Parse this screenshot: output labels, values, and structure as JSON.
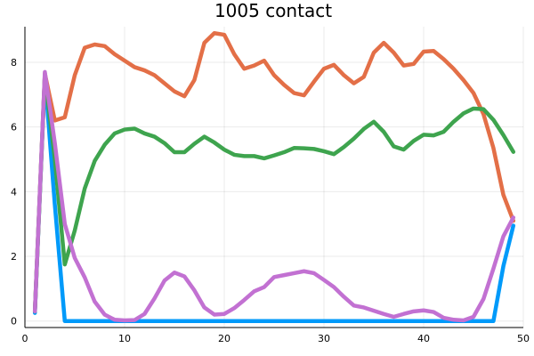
{
  "chart_data": {
    "type": "line",
    "title": "1005 contact",
    "xlabel": "",
    "ylabel": "",
    "xlim": [
      0,
      50
    ],
    "ylim": [
      -0.2,
      9.1
    ],
    "xticks": [
      0,
      10,
      20,
      30,
      40,
      50
    ],
    "yticks": [
      0,
      2,
      4,
      6,
      8
    ],
    "grid": true,
    "legend": "none",
    "x": [
      1,
      2,
      3,
      4,
      5,
      6,
      7,
      8,
      9,
      10,
      11,
      12,
      13,
      14,
      15,
      16,
      17,
      18,
      19,
      20,
      21,
      22,
      23,
      24,
      25,
      26,
      27,
      28,
      29,
      30,
      31,
      32,
      33,
      34,
      35,
      36,
      37,
      38,
      39,
      40,
      41,
      42,
      43,
      44,
      45,
      46,
      47,
      48,
      49
    ],
    "series": [
      {
        "color": "#009AFA",
        "values": [
          0.25,
          7.6,
          3.6,
          0.0,
          0.0,
          0.0,
          0.0,
          0.0,
          0.0,
          0.0,
          0.0,
          0.0,
          0.0,
          0.0,
          0.0,
          0.0,
          0.0,
          0.0,
          0.0,
          0.0,
          0.0,
          0.0,
          0.0,
          0.0,
          0.0,
          0.0,
          0.0,
          0.0,
          0.0,
          0.0,
          0.0,
          0.0,
          0.0,
          0.0,
          0.0,
          0.0,
          0.0,
          0.0,
          0.0,
          0.0,
          0.0,
          0.0,
          0.0,
          0.0,
          0.0,
          0.0,
          0.0,
          1.7,
          2.95
        ]
      },
      {
        "color": "#E36F47",
        "values": [
          0.3,
          7.65,
          6.2,
          6.3,
          7.6,
          8.45,
          8.55,
          8.5,
          8.25,
          8.05,
          7.85,
          7.75,
          7.6,
          7.35,
          7.1,
          6.95,
          7.45,
          8.6,
          8.9,
          8.85,
          8.25,
          7.8,
          7.9,
          8.05,
          7.6,
          7.3,
          7.05,
          6.98,
          7.4,
          7.8,
          7.92,
          7.6,
          7.35,
          7.55,
          8.3,
          8.6,
          8.3,
          7.9,
          7.95,
          8.33,
          8.35,
          8.1,
          7.8,
          7.45,
          7.05,
          6.4,
          5.35,
          3.9,
          3.1
        ]
      },
      {
        "color": "#3EA44E",
        "values": [
          0.3,
          7.6,
          5.0,
          1.75,
          2.8,
          4.1,
          4.95,
          5.45,
          5.8,
          5.92,
          5.95,
          5.8,
          5.7,
          5.5,
          5.22,
          5.22,
          5.48,
          5.7,
          5.52,
          5.3,
          5.14,
          5.1,
          5.1,
          5.03,
          5.12,
          5.22,
          5.35,
          5.34,
          5.32,
          5.25,
          5.16,
          5.38,
          5.64,
          5.94,
          6.16,
          5.85,
          5.4,
          5.3,
          5.57,
          5.76,
          5.74,
          5.85,
          6.16,
          6.42,
          6.57,
          6.55,
          6.22,
          5.75,
          5.23
        ]
      },
      {
        "color": "#C271D2",
        "values": [
          0.3,
          7.7,
          5.5,
          3.0,
          1.95,
          1.35,
          0.6,
          0.2,
          0.04,
          0.02,
          0.03,
          0.22,
          0.7,
          1.25,
          1.5,
          1.38,
          0.95,
          0.42,
          0.2,
          0.22,
          0.4,
          0.65,
          0.92,
          1.05,
          1.36,
          1.42,
          1.48,
          1.54,
          1.48,
          1.27,
          1.05,
          0.75,
          0.48,
          0.42,
          0.32,
          0.22,
          0.13,
          0.22,
          0.3,
          0.33,
          0.28,
          0.1,
          0.04,
          0.02,
          0.13,
          0.68,
          1.62,
          2.62,
          3.2
        ]
      }
    ]
  }
}
